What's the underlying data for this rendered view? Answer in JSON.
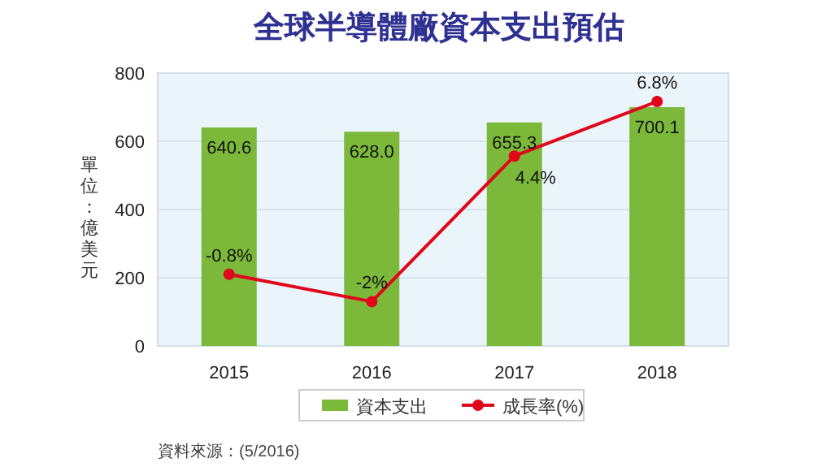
{
  "chart_data": {
    "type": "bar",
    "title": "全球半導體廠資本支出預估",
    "ylabel": "單位：億美元",
    "categories": [
      "2015",
      "2016",
      "2017",
      "2018"
    ],
    "series": [
      {
        "name": "資本支出",
        "color": "#7cb83a",
        "values": [
          640.6,
          628.0,
          655.3,
          700.1
        ],
        "value_labels": [
          "640.6",
          "628.0",
          "655.3",
          "700.1"
        ]
      },
      {
        "name": "成長率(%)",
        "type": "line",
        "axis": "y2",
        "color": "#e0061b",
        "marker": "circle",
        "values": [
          -0.8,
          -2,
          4.4,
          6.8
        ],
        "value_labels": [
          "-0.8%",
          "-2%",
          "4.4%",
          "6.8%"
        ]
      }
    ],
    "ylim": [
      0,
      800
    ],
    "yticks": [
      0,
      200,
      400,
      600,
      800
    ],
    "y2lim": [
      -3.95,
      8.05
    ],
    "grid": "y",
    "legend": "bottom",
    "annotations": [
      "資料來源：(5/2016)"
    ]
  }
}
